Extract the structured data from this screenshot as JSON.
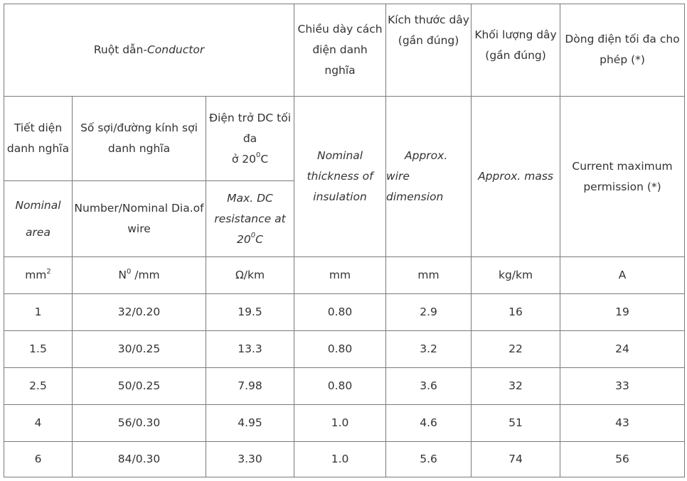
{
  "header": {
    "conductor_vi": "Ruột dẫn-",
    "conductor_en": "Conductor",
    "insulation_vi_1": "Chiều dày cách",
    "insulation_vi_2": "điện danh nghĩa",
    "dimension_vi_1": "Kích thước dây",
    "dimension_vi_2": "(gần đúng)",
    "mass_vi_1": "Khối lượng dây",
    "mass_vi_2": "(gần đúng)",
    "current_vi_1": "Dòng điện tối đa cho",
    "current_vi_2": "phép (*)"
  },
  "subheader_vi": {
    "area_1": "Tiết diện",
    "area_2": "danh nghĩa",
    "wire_1": "Số sợi/đường kính sợi",
    "wire_2": "danh nghĩa",
    "resistance_1": "Điện trở DC tối",
    "resistance_2": "đa",
    "resistance_3_pre": "ở 20",
    "resistance_3_sup": "0",
    "resistance_3_post": "C"
  },
  "subheader_en": {
    "area_1": "Nominal",
    "area_2": "area",
    "wire_1": "Number/Nominal Dia.of",
    "wire_2": "wire",
    "resistance_1": "Max. DC",
    "resistance_2": "resistance at",
    "resistance_3_pre": "20",
    "resistance_3_sup": "0",
    "resistance_3_post": "C",
    "insulation_1": "Nominal",
    "insulation_2": "thickness of",
    "insulation_3": "insulation",
    "dimension_1": "Approx.",
    "dimension_2": "wire dimension",
    "mass": "Approx. mass",
    "current_1": "Current maximum",
    "current_2": "permission (*)"
  },
  "units": {
    "area": "mm",
    "area_sup": "2",
    "wire_pre": "N",
    "wire_sup": "0",
    "wire_post": " /mm",
    "resistance": "Ω/km",
    "insulation": "mm",
    "dimension": "mm",
    "mass": "kg/km",
    "current": "A"
  },
  "rows": [
    [
      "1",
      "32/0.20",
      "19.5",
      "0.80",
      "2.9",
      "16",
      "19"
    ],
    [
      "1.5",
      "30/0.25",
      "13.3",
      "0.80",
      "3.2",
      "22",
      "24"
    ],
    [
      "2.5",
      "50/0.25",
      "7.98",
      "0.80",
      "3.6",
      "32",
      "33"
    ],
    [
      "4",
      "56/0.30",
      "4.95",
      "1.0",
      "4.6",
      "51",
      "43"
    ],
    [
      "6",
      "84/0.30",
      "3.30",
      "1.0",
      "5.6",
      "74",
      "56"
    ]
  ]
}
